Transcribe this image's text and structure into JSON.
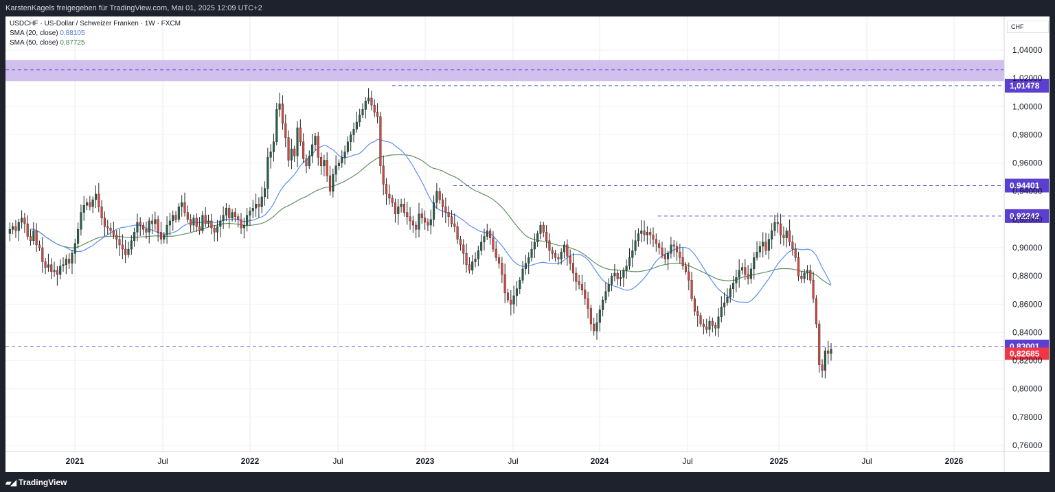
{
  "header": {
    "attribution": "KarstenKagels freigegeben für TradingView.com, Mai 01, 2025 12:09 UTC+2"
  },
  "footer": {
    "brand": "TradingView"
  },
  "legend": {
    "symbol_line": "USDCHF · US-Dollar / Schweizer Franken · 1W · FXCM",
    "sma20_label": "SMA (20, close)",
    "sma20_value": "0,88105",
    "sma50_label": "SMA (50, close)",
    "sma50_value": "0,87725"
  },
  "currency": "CHF",
  "colors": {
    "up": "#26614a",
    "down": "#d9443c",
    "sma20": "#5b8def",
    "sma50": "#5f8f5f",
    "level_line": "#5b5bd6",
    "zone": "#c9b5ea",
    "label_bg": "#5b3fd1",
    "price_bg": "#f23645"
  },
  "chart_data": {
    "type": "candlestick",
    "timeframe": "1W",
    "x_labels": [
      "2021",
      "Jul",
      "2022",
      "Jul",
      "2023",
      "Jul",
      "2024",
      "Jul",
      "2025",
      "Jul",
      "2026"
    ],
    "x_range": [
      "2020-09",
      "2026-03"
    ],
    "y_ticks": [
      "1,04000",
      "1,02000",
      "1,00000",
      "0,98000",
      "0,96000",
      "0,94000",
      "0,92000",
      "0,90000",
      "0,88000",
      "0,86000",
      "0,84000",
      "0,82000",
      "0,80000",
      "0,78000",
      "0,76000"
    ],
    "ylim": [
      0.755,
      1.045
    ],
    "levels": [
      {
        "value": 1.01478,
        "label": "1,01478"
      },
      {
        "value": 0.94401,
        "label": "0,94401"
      },
      {
        "value": 0.92242,
        "label": "0,92242"
      },
      {
        "value": 0.83001,
        "label": "0,83001"
      }
    ],
    "current_price": {
      "value": 0.82685,
      "label": "0,82685"
    },
    "zone": {
      "low": 1.018,
      "high": 1.033,
      "mid": 1.026
    },
    "weekly_close": [
      0.91,
      0.913,
      0.915,
      0.912,
      0.918,
      0.921,
      0.917,
      0.908,
      0.905,
      0.912,
      0.902,
      0.9,
      0.89,
      0.886,
      0.888,
      0.883,
      0.884,
      0.881,
      0.887,
      0.888,
      0.892,
      0.889,
      0.896,
      0.903,
      0.913,
      0.925,
      0.93,
      0.932,
      0.929,
      0.934,
      0.938,
      0.929,
      0.921,
      0.915,
      0.914,
      0.912,
      0.909,
      0.906,
      0.902,
      0.899,
      0.895,
      0.899,
      0.905,
      0.911,
      0.918,
      0.916,
      0.913,
      0.911,
      0.919,
      0.917,
      0.92,
      0.911,
      0.906,
      0.909,
      0.916,
      0.919,
      0.923,
      0.92,
      0.929,
      0.932,
      0.925,
      0.92,
      0.916,
      0.921,
      0.915,
      0.912,
      0.923,
      0.917,
      0.919,
      0.914,
      0.911,
      0.915,
      0.919,
      0.923,
      0.928,
      0.921,
      0.925,
      0.922,
      0.92,
      0.914,
      0.916,
      0.923,
      0.926,
      0.928,
      0.931,
      0.929,
      0.936,
      0.942,
      0.964,
      0.968,
      0.975,
      0.998,
      1.002,
      0.988,
      0.978,
      0.962,
      0.97,
      0.965,
      0.985,
      0.975,
      0.963,
      0.958,
      0.965,
      0.973,
      0.979,
      0.964,
      0.958,
      0.962,
      0.951,
      0.94,
      0.952,
      0.958,
      0.96,
      0.964,
      0.968,
      0.975,
      0.98,
      0.984,
      0.989,
      0.994,
      0.998,
      1.004,
      1.006,
      1.001,
      0.996,
      0.993,
      0.958,
      0.945,
      0.938,
      0.935,
      0.932,
      0.924,
      0.929,
      0.931,
      0.925,
      0.922,
      0.919,
      0.916,
      0.913,
      0.924,
      0.921,
      0.918,
      0.916,
      0.92,
      0.932,
      0.94,
      0.934,
      0.929,
      0.925,
      0.922,
      0.917,
      0.915,
      0.906,
      0.902,
      0.896,
      0.888,
      0.884,
      0.89,
      0.892,
      0.898,
      0.904,
      0.908,
      0.912,
      0.907,
      0.899,
      0.893,
      0.889,
      0.881,
      0.868,
      0.863,
      0.86,
      0.866,
      0.871,
      0.877,
      0.885,
      0.889,
      0.893,
      0.899,
      0.904,
      0.91,
      0.916,
      0.911,
      0.905,
      0.898,
      0.896,
      0.893,
      0.892,
      0.897,
      0.902,
      0.894,
      0.889,
      0.882,
      0.876,
      0.874,
      0.87,
      0.864,
      0.857,
      0.846,
      0.841,
      0.847,
      0.856,
      0.863,
      0.869,
      0.874,
      0.88,
      0.882,
      0.878,
      0.879,
      0.884,
      0.887,
      0.893,
      0.898,
      0.905,
      0.91,
      0.912,
      0.909,
      0.911,
      0.909,
      0.906,
      0.903,
      0.9,
      0.895,
      0.892,
      0.896,
      0.902,
      0.901,
      0.897,
      0.893,
      0.887,
      0.883,
      0.877,
      0.864,
      0.855,
      0.852,
      0.846,
      0.844,
      0.842,
      0.848,
      0.845,
      0.843,
      0.851,
      0.858,
      0.861,
      0.865,
      0.871,
      0.875,
      0.879,
      0.884,
      0.886,
      0.881,
      0.878,
      0.885,
      0.893,
      0.897,
      0.901,
      0.904,
      0.898,
      0.906,
      0.912,
      0.918,
      0.917,
      0.909,
      0.907,
      0.912,
      0.904,
      0.899,
      0.893,
      0.88,
      0.878,
      0.882,
      0.884,
      0.877,
      0.864,
      0.846,
      0.817,
      0.813,
      0.827,
      0.825,
      0.828
    ],
    "sma20_last": 0.88105,
    "sma50_last": 0.87725
  }
}
